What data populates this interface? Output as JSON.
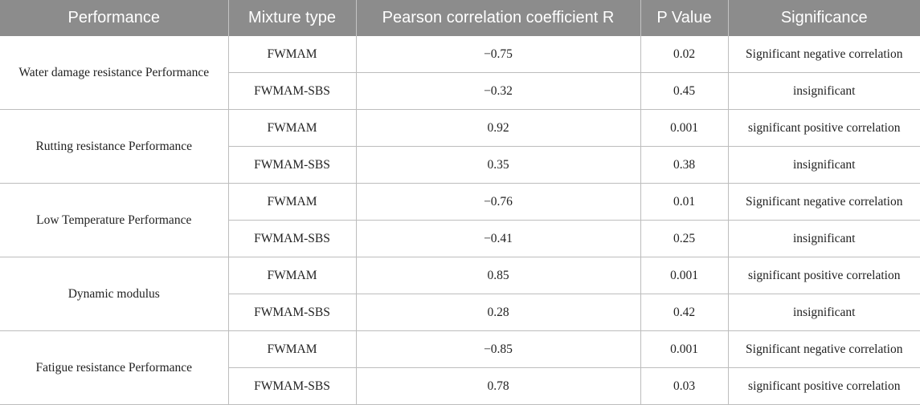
{
  "headers": [
    "Performance",
    "Mixture type",
    "Pearson correlation coefficient R",
    "P Value",
    "Significance"
  ],
  "groups": [
    {
      "performance": "Water damage resistance Performance",
      "rows": [
        {
          "mixture": "FWMAM",
          "r": "−0.75",
          "p": "0.02",
          "significance": "Significant negative correlation"
        },
        {
          "mixture": "FWMAM-SBS",
          "r": "−0.32",
          "p": "0.45",
          "significance": "insignificant"
        }
      ]
    },
    {
      "performance": "Rutting resistance Performance",
      "rows": [
        {
          "mixture": "FWMAM",
          "r": "0.92",
          "p": "0.001",
          "significance": "significant positive correlation"
        },
        {
          "mixture": "FWMAM-SBS",
          "r": "0.35",
          "p": "0.38",
          "significance": "insignificant"
        }
      ]
    },
    {
      "performance": "Low Temperature Performance",
      "rows": [
        {
          "mixture": "FWMAM",
          "r": "−0.76",
          "p": "0.01",
          "significance": "Significant negative correlation"
        },
        {
          "mixture": "FWMAM-SBS",
          "r": "−0.41",
          "p": "0.25",
          "significance": "insignificant"
        }
      ]
    },
    {
      "performance": "Dynamic modulus",
      "rows": [
        {
          "mixture": "FWMAM",
          "r": "0.85",
          "p": "0.001",
          "significance": "significant positive correlation"
        },
        {
          "mixture": "FWMAM-SBS",
          "r": "0.28",
          "p": "0.42",
          "significance": "insignificant"
        }
      ]
    },
    {
      "performance": "Fatigue resistance Performance",
      "rows": [
        {
          "mixture": "FWMAM",
          "r": "−0.85",
          "p": "0.001",
          "significance": "Significant negative correlation"
        },
        {
          "mixture": "FWMAM-SBS",
          "r": "0.78",
          "p": "0.03",
          "significance": "significant positive correlation"
        }
      ]
    }
  ]
}
